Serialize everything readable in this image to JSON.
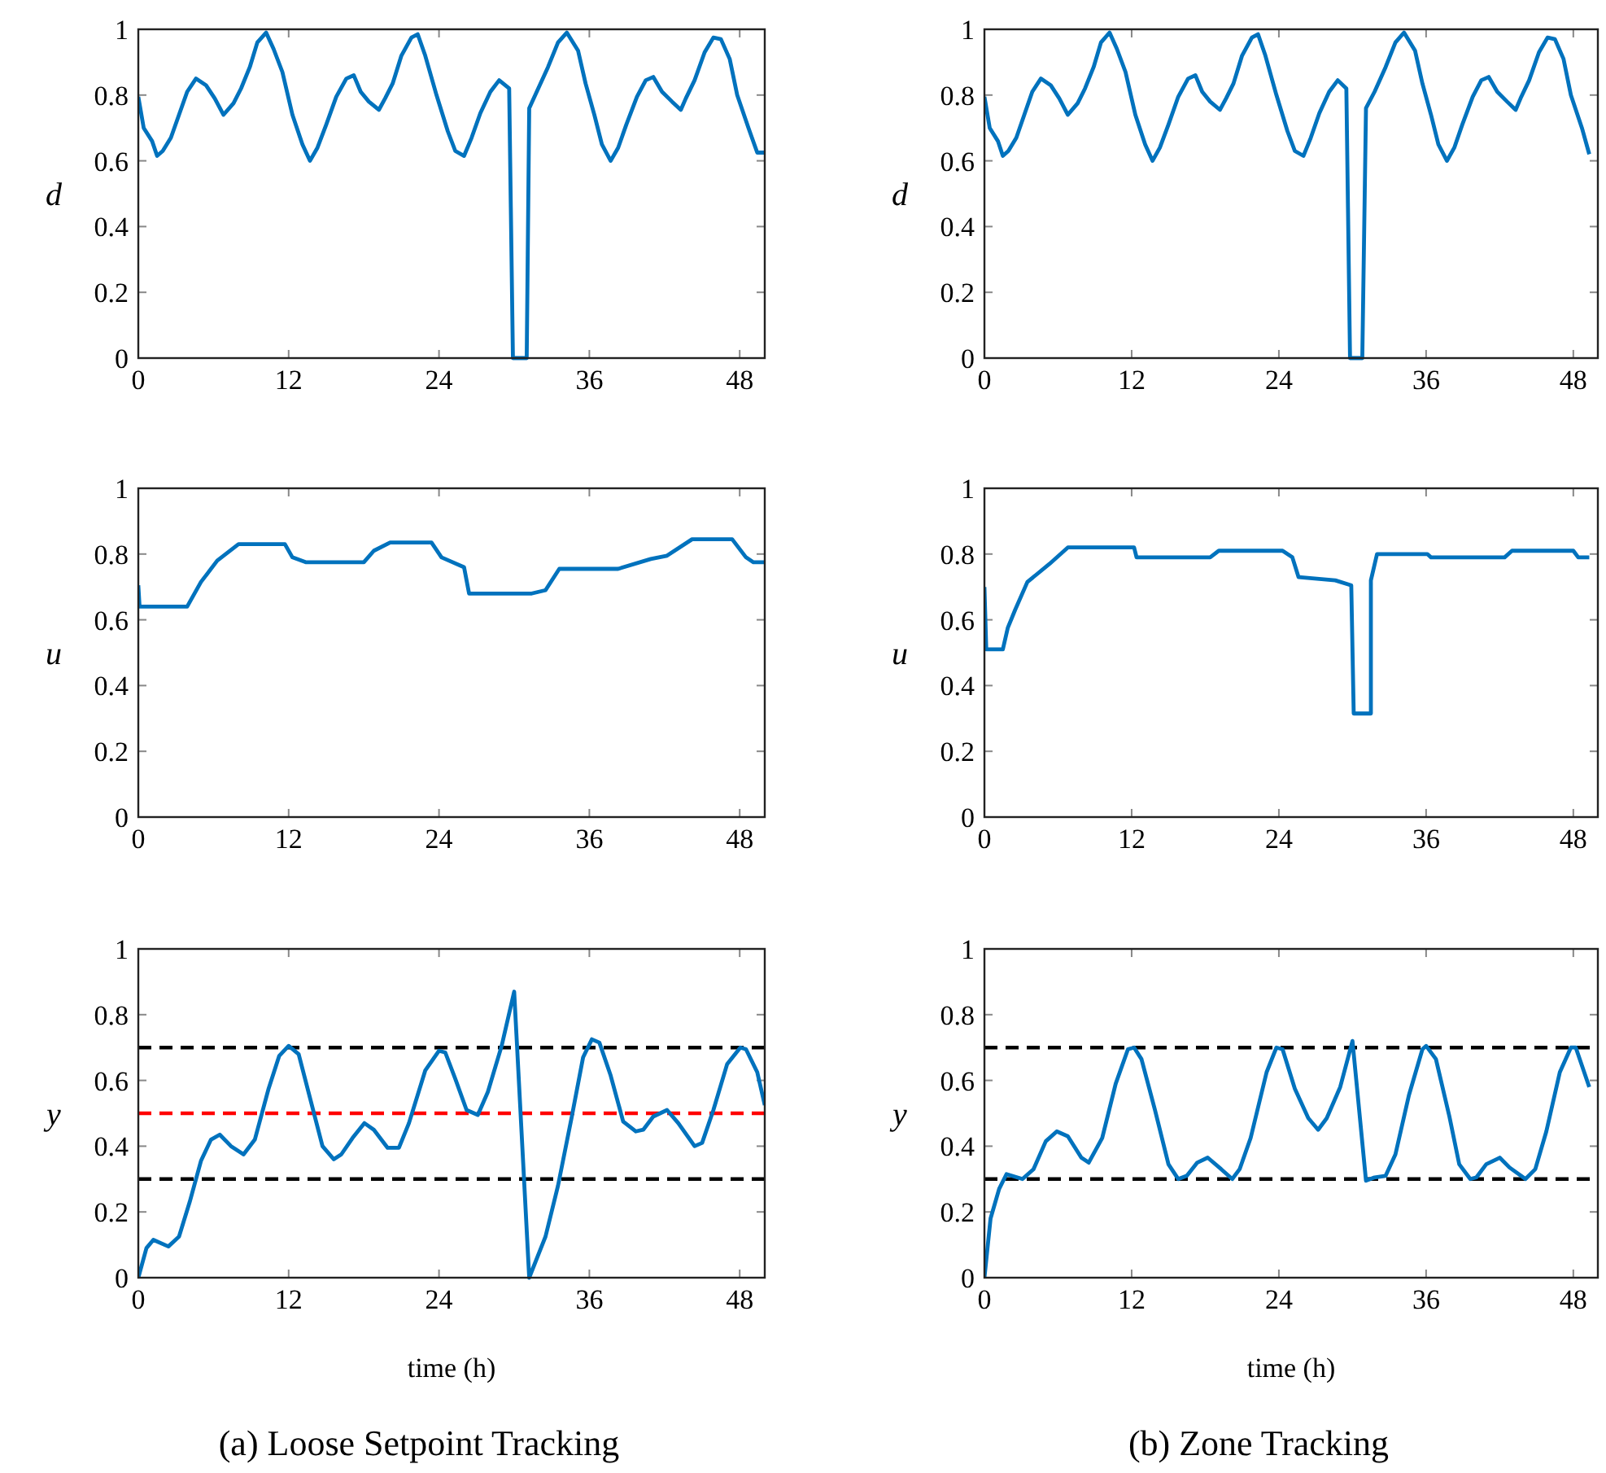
{
  "chart_data": [
    {
      "type": "line",
      "ylabel": "d",
      "xlim": [
        0,
        50
      ],
      "ylim": [
        0,
        1
      ],
      "xticks": [
        0,
        12,
        24,
        36,
        48
      ],
      "yticks": [
        0,
        0.2,
        0.4,
        0.6,
        0.8,
        1
      ],
      "series": [
        {
          "color": "#0072bd",
          "x": [
            0,
            0.43,
            1.1,
            1.5,
            1.95,
            2.6,
            3.25,
            3.9,
            4.6,
            5.4,
            6.1,
            6.8,
            7.6,
            8.2,
            8.9,
            9.5,
            10.2,
            10.8,
            11.5,
            12.3,
            13.1,
            13.7,
            14.3,
            15,
            15.8,
            16.6,
            17.2,
            17.75,
            18.4,
            19.2,
            19.7,
            20.3,
            21,
            21.8,
            22.3,
            22.9,
            23.8,
            24.7,
            25.3,
            26,
            26.6,
            27.3,
            28.1,
            28.8,
            29.6,
            29.9,
            31,
            31.2,
            31.8,
            32.7,
            33.5,
            34.2,
            35.1,
            35.7,
            36.4,
            37,
            37.7,
            38.3,
            38.95,
            39.8,
            40.5,
            41.1,
            41.8,
            42.6,
            43.3,
            43.7,
            44.4,
            45.2,
            45.9,
            46.5,
            47.2,
            47.8,
            48.7,
            49.4,
            50
          ],
          "values": [
            0.795,
            0.7,
            0.66,
            0.615,
            0.63,
            0.67,
            0.74,
            0.81,
            0.85,
            0.83,
            0.79,
            0.74,
            0.775,
            0.82,
            0.885,
            0.96,
            0.99,
            0.94,
            0.87,
            0.74,
            0.65,
            0.6,
            0.64,
            0.71,
            0.795,
            0.85,
            0.86,
            0.81,
            0.78,
            0.755,
            0.79,
            0.835,
            0.92,
            0.975,
            0.985,
            0.92,
            0.8,
            0.69,
            0.63,
            0.615,
            0.67,
            0.745,
            0.81,
            0.845,
            0.82,
            0,
            0,
            0.76,
            0.81,
            0.885,
            0.96,
            0.99,
            0.935,
            0.835,
            0.74,
            0.65,
            0.6,
            0.64,
            0.71,
            0.795,
            0.845,
            0.855,
            0.81,
            0.78,
            0.755,
            0.79,
            0.845,
            0.93,
            0.975,
            0.97,
            0.91,
            0.8,
            0.7,
            0.625,
            0.625
          ]
        }
      ]
    },
    {
      "type": "line",
      "ylabel": "d",
      "xlim": [
        0,
        50
      ],
      "ylim": [
        0,
        1
      ],
      "xticks": [
        0,
        12,
        24,
        36,
        48
      ],
      "yticks": [
        0,
        0.2,
        0.4,
        0.6,
        0.8,
        1
      ],
      "series": [
        {
          "color": "#0072bd",
          "x": [
            0,
            0.43,
            1.1,
            1.5,
            1.95,
            2.6,
            3.25,
            3.9,
            4.6,
            5.4,
            6.1,
            6.8,
            7.6,
            8.2,
            8.9,
            9.5,
            10.2,
            10.8,
            11.5,
            12.3,
            13.1,
            13.7,
            14.3,
            15,
            15.8,
            16.6,
            17.2,
            17.75,
            18.4,
            19.2,
            19.7,
            20.3,
            21,
            21.8,
            22.3,
            22.9,
            23.8,
            24.7,
            25.3,
            26,
            26.6,
            27.3,
            28.1,
            28.8,
            29.5,
            29.8,
            30.8,
            31.1,
            31.8,
            32.7,
            33.5,
            34.2,
            35.1,
            35.7,
            36.4,
            37,
            37.7,
            38.3,
            38.95,
            39.8,
            40.5,
            41.1,
            41.8,
            42.6,
            43.3,
            43.7,
            44.4,
            45.2,
            45.9,
            46.5,
            47.2,
            47.8,
            48.7,
            49.3
          ],
          "values": [
            0.795,
            0.7,
            0.66,
            0.615,
            0.63,
            0.67,
            0.74,
            0.81,
            0.85,
            0.83,
            0.79,
            0.74,
            0.775,
            0.82,
            0.885,
            0.96,
            0.99,
            0.94,
            0.87,
            0.74,
            0.65,
            0.6,
            0.64,
            0.71,
            0.795,
            0.85,
            0.86,
            0.81,
            0.78,
            0.755,
            0.79,
            0.835,
            0.92,
            0.975,
            0.985,
            0.92,
            0.8,
            0.69,
            0.63,
            0.615,
            0.67,
            0.745,
            0.81,
            0.845,
            0.82,
            0,
            0,
            0.76,
            0.81,
            0.885,
            0.96,
            0.99,
            0.935,
            0.835,
            0.74,
            0.65,
            0.6,
            0.64,
            0.71,
            0.795,
            0.845,
            0.855,
            0.81,
            0.78,
            0.755,
            0.79,
            0.845,
            0.93,
            0.975,
            0.97,
            0.91,
            0.8,
            0.7,
            0.62
          ]
        }
      ]
    },
    {
      "type": "line",
      "ylabel": "u",
      "xlim": [
        0,
        50
      ],
      "ylim": [
        0,
        1
      ],
      "xticks": [
        0,
        12,
        24,
        36,
        48
      ],
      "yticks": [
        0,
        0.2,
        0.4,
        0.6,
        0.8,
        1
      ],
      "series": [
        {
          "color": "#0072bd",
          "x": [
            0,
            0.1,
            3.9,
            5,
            6.3,
            8,
            11.7,
            12.3,
            13.4,
            18,
            18.8,
            20.1,
            23.4,
            24.2,
            26,
            26.4,
            31.4,
            32.5,
            33.6,
            38.3,
            40.9,
            42.2,
            44.2,
            47.4,
            48.5,
            49.1,
            50
          ],
          "values": [
            0.705,
            0.64,
            0.64,
            0.715,
            0.78,
            0.83,
            0.83,
            0.79,
            0.775,
            0.775,
            0.81,
            0.835,
            0.835,
            0.79,
            0.76,
            0.68,
            0.68,
            0.69,
            0.755,
            0.755,
            0.785,
            0.795,
            0.845,
            0.845,
            0.79,
            0.775,
            0.775
          ]
        }
      ]
    },
    {
      "type": "line",
      "ylabel": "u",
      "xlim": [
        0,
        50
      ],
      "ylim": [
        0,
        1
      ],
      "xticks": [
        0,
        12,
        24,
        36,
        48
      ],
      "yticks": [
        0,
        0.2,
        0.4,
        0.6,
        0.8,
        1
      ],
      "series": [
        {
          "color": "#0072bd",
          "x": [
            0,
            0.15,
            1.5,
            1.9,
            2.5,
            3.5,
            5.3,
            6.8,
            12.2,
            12.4,
            18.4,
            19.1,
            24.3,
            25.1,
            25.6,
            28.6,
            29.9,
            30.1,
            31.5,
            31.5,
            32,
            36.1,
            36.4,
            42.4,
            43,
            48,
            48.4,
            49.3
          ],
          "values": [
            0.7,
            0.51,
            0.51,
            0.575,
            0.63,
            0.715,
            0.77,
            0.82,
            0.82,
            0.79,
            0.79,
            0.81,
            0.81,
            0.79,
            0.73,
            0.72,
            0.705,
            0.315,
            0.315,
            0.72,
            0.8,
            0.8,
            0.79,
            0.79,
            0.81,
            0.81,
            0.79,
            0.79
          ]
        }
      ]
    },
    {
      "type": "line",
      "ylabel": "y",
      "xlabel": "time (h)",
      "annotations": [
        "(a) Loose Setpoint Tracking"
      ],
      "xlim": [
        0,
        50
      ],
      "ylim": [
        0,
        1
      ],
      "xticks": [
        0,
        12,
        24,
        36,
        48
      ],
      "yticks": [
        0,
        0.2,
        0.4,
        0.6,
        0.8,
        1
      ],
      "ref_lines": [
        {
          "axis": "y",
          "value": 0.7,
          "color": "#000000",
          "line_style": "dashed"
        },
        {
          "axis": "y",
          "value": 0.5,
          "color": "#ff0000",
          "line_style": "dashed"
        },
        {
          "axis": "y",
          "value": 0.3,
          "color": "#000000",
          "line_style": "dashed"
        }
      ],
      "series": [
        {
          "color": "#0072bd",
          "x": [
            0,
            0.65,
            1.2,
            2.4,
            3.25,
            4.1,
            5,
            5.8,
            6.5,
            7.4,
            8.4,
            9.3,
            10.4,
            11.25,
            12,
            12.8,
            13.85,
            14.7,
            15.6,
            16.2,
            17.1,
            18.05,
            18.8,
            19.9,
            20.8,
            21.6,
            22.9,
            24,
            24.5,
            25.3,
            26.2,
            27.1,
            27.9,
            29,
            30,
            31.2,
            32.5,
            33.5,
            34.6,
            35.5,
            36.2,
            36.8,
            37.7,
            38.7,
            39.7,
            40.3,
            41.1,
            42.2,
            43.1,
            44.4,
            45,
            45.9,
            47,
            48.05,
            48.5,
            49.4,
            50
          ],
          "values": [
            0,
            0.09,
            0.115,
            0.095,
            0.125,
            0.23,
            0.355,
            0.42,
            0.435,
            0.4,
            0.375,
            0.42,
            0.575,
            0.675,
            0.705,
            0.68,
            0.525,
            0.4,
            0.36,
            0.375,
            0.425,
            0.47,
            0.45,
            0.395,
            0.395,
            0.47,
            0.63,
            0.69,
            0.685,
            0.605,
            0.51,
            0.495,
            0.565,
            0.705,
            0.87,
            0,
            0.125,
            0.28,
            0.49,
            0.67,
            0.725,
            0.715,
            0.615,
            0.475,
            0.445,
            0.45,
            0.49,
            0.51,
            0.47,
            0.4,
            0.41,
            0.51,
            0.65,
            0.7,
            0.695,
            0.625,
            0.525
          ]
        }
      ]
    },
    {
      "type": "line",
      "ylabel": "y",
      "xlabel": "time (h)",
      "annotations": [
        "(b) Zone Tracking"
      ],
      "xlim": [
        0,
        50
      ],
      "ylim": [
        0,
        1
      ],
      "xticks": [
        0,
        12,
        24,
        36,
        48
      ],
      "yticks": [
        0,
        0.2,
        0.4,
        0.6,
        0.8,
        1
      ],
      "ref_lines": [
        {
          "axis": "y",
          "value": 0.7,
          "color": "#000000",
          "line_style": "dashed"
        },
        {
          "axis": "y",
          "value": 0.3,
          "color": "#000000",
          "line_style": "dashed"
        }
      ],
      "series": [
        {
          "color": "#0072bd",
          "x": [
            0,
            0.5,
            1.2,
            1.8,
            3.1,
            4,
            5,
            5.9,
            6.8,
            7.9,
            8.5,
            9.6,
            10.7,
            11.7,
            12.2,
            12.8,
            13.9,
            15,
            15.8,
            16.5,
            17.35,
            18.2,
            19.3,
            20.2,
            20.8,
            21.7,
            23,
            23.8,
            24.3,
            25.3,
            26.4,
            27.2,
            27.9,
            29,
            30,
            31.1,
            31.8,
            32.7,
            33.5,
            34.6,
            35.7,
            36,
            36.8,
            37.9,
            38.7,
            39.6,
            40.1,
            40.9,
            42,
            42.8,
            44.1,
            44.9,
            45.8,
            46.9,
            47.8,
            48.2,
            49.3
          ],
          "values": [
            0,
            0.18,
            0.27,
            0.315,
            0.3,
            0.33,
            0.415,
            0.445,
            0.43,
            0.365,
            0.35,
            0.425,
            0.59,
            0.695,
            0.7,
            0.665,
            0.51,
            0.345,
            0.3,
            0.31,
            0.35,
            0.365,
            0.33,
            0.3,
            0.33,
            0.425,
            0.625,
            0.7,
            0.695,
            0.575,
            0.485,
            0.45,
            0.485,
            0.58,
            0.72,
            0.295,
            0.305,
            0.31,
            0.375,
            0.555,
            0.695,
            0.705,
            0.665,
            0.49,
            0.345,
            0.3,
            0.305,
            0.345,
            0.365,
            0.335,
            0.3,
            0.33,
            0.445,
            0.625,
            0.7,
            0.7,
            0.58
          ]
        }
      ]
    }
  ]
}
